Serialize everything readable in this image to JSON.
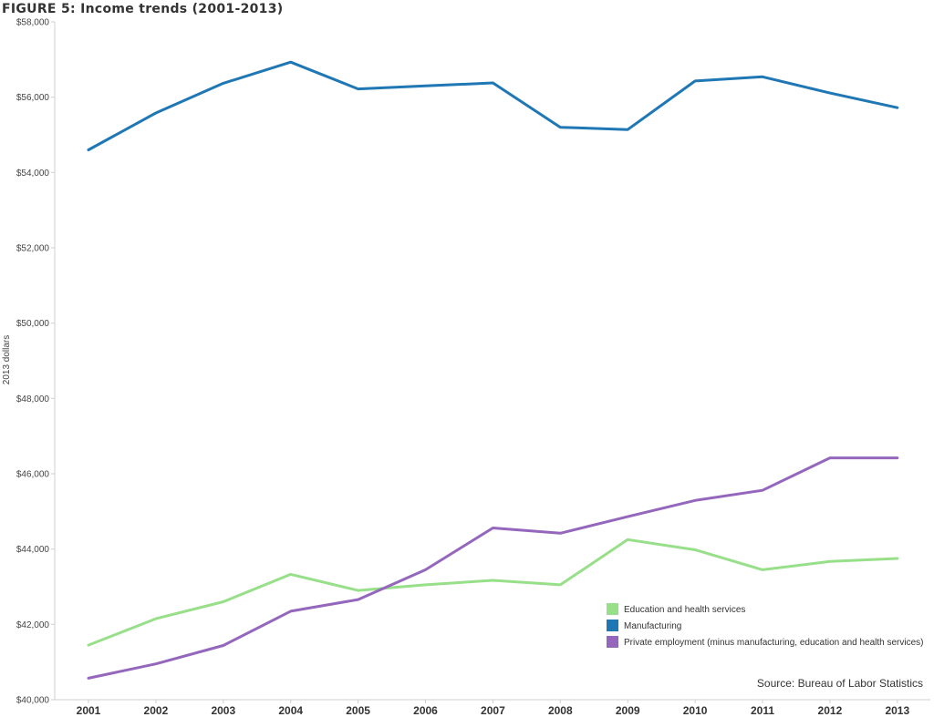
{
  "chart_data": {
    "type": "line",
    "title": "FIGURE 5: Income trends (2001-2013)",
    "ylabel": "2013 dollars",
    "xlabel": "",
    "categories": [
      "2001",
      "2002",
      "2003",
      "2004",
      "2005",
      "2006",
      "2007",
      "2008",
      "2009",
      "2010",
      "2011",
      "2012",
      "2013"
    ],
    "ylim": [
      40000,
      58000
    ],
    "yticks": [
      40000,
      42000,
      44000,
      46000,
      48000,
      50000,
      52000,
      54000,
      56000,
      58000
    ],
    "ytick_labels": [
      "$40,000",
      "$42,000",
      "$44,000",
      "$46,000",
      "$48,000",
      "$50,000",
      "$52,000",
      "$54,000",
      "$56,000",
      "$58,000"
    ],
    "series": [
      {
        "name": "Education and health services",
        "color": "#98df8a",
        "values": [
          41450,
          42150,
          42600,
          43330,
          42900,
          43050,
          43170,
          43050,
          44250,
          43980,
          43450,
          43670,
          43750
        ]
      },
      {
        "name": "Manufacturing",
        "color": "#1f77b4",
        "values": [
          54600,
          55580,
          56370,
          56930,
          56220,
          56300,
          56380,
          55200,
          55140,
          56430,
          56540,
          56110,
          55720
        ]
      },
      {
        "name": "Private employment (minus manufacturing, education and health services)",
        "color": "#9467bd",
        "values": [
          40570,
          40950,
          41440,
          42350,
          42660,
          43450,
          44560,
          44420,
          44860,
          45290,
          45560,
          46420,
          46420
        ]
      }
    ],
    "grid": false,
    "legend_position": "bottom-right",
    "annotation": "Source: Bureau of Labor Statistics"
  }
}
